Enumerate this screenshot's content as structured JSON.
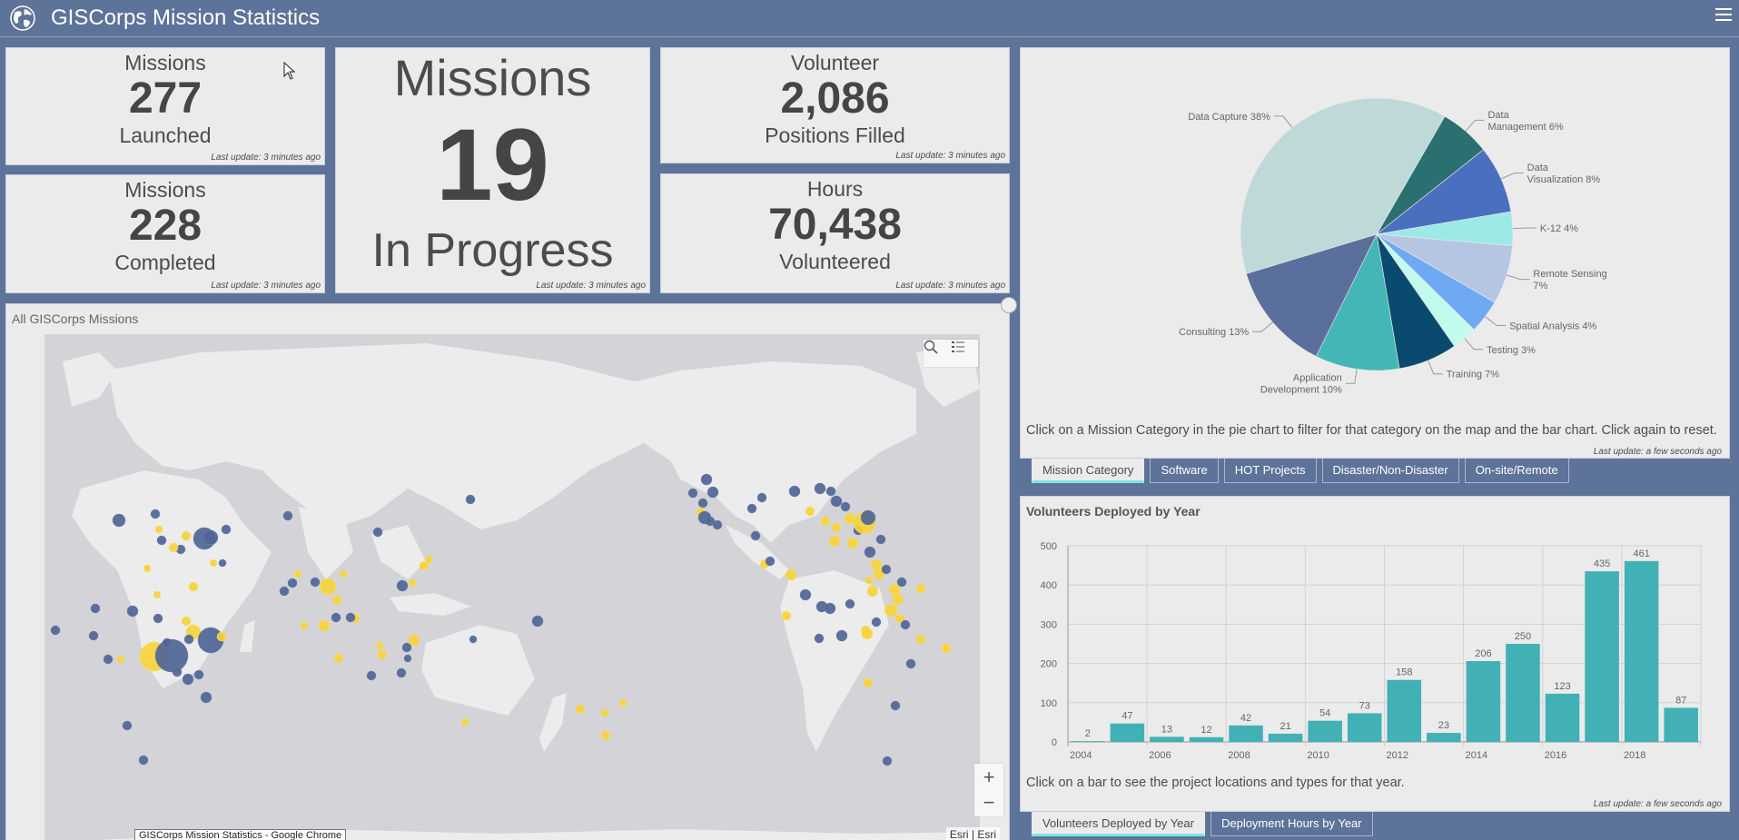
{
  "header": {
    "title": "GISCorps Mission Statistics",
    "logo_icon": "globe-icon",
    "menu_icon": "hamburger-menu-icon"
  },
  "indicators": [
    {
      "top": "Missions",
      "value": "277",
      "bottom": "Launched",
      "updated": "Last update: 3 minutes ago"
    },
    {
      "top": "Missions",
      "value": "228",
      "bottom": "Completed",
      "updated": "Last update: 3 minutes ago"
    },
    {
      "top": "Missions",
      "value": "19",
      "bottom": "In Progress",
      "updated": "Last update: 3 minutes ago"
    },
    {
      "top": "Volunteer",
      "value": "2,086",
      "bottom": "Positions Filled",
      "updated": "Last update: 3 minutes ago"
    },
    {
      "top": "Hours",
      "value": "70,438",
      "bottom": "Volunteered",
      "updated": "Last update: 3 minutes ago"
    }
  ],
  "map": {
    "title": "All GISCorps Missions",
    "search_icon": "search-icon",
    "legend_icon": "legend-list-icon",
    "zoom_in": "+",
    "zoom_out": "−",
    "attribution": "Esri | Esri",
    "colors": {
      "water": "#d3d3d8",
      "land": "#ececec",
      "point_blue": "#4f6596",
      "point_yellow": "#f7d33a"
    }
  },
  "pie_panel": {
    "description": "Click on a Mission Category in the pie chart to filter for that category on the map and the bar chart. Click again to reset.",
    "updated": "Last update: a few seconds ago",
    "tabs": [
      {
        "label": "Mission Category",
        "active": true
      },
      {
        "label": "Software",
        "active": false
      },
      {
        "label": "HOT Projects",
        "active": false
      },
      {
        "label": "Disaster/Non-Disaster",
        "active": false
      },
      {
        "label": "On-site/Remote",
        "active": false
      }
    ]
  },
  "bar_panel": {
    "title": "Volunteers Deployed by Year",
    "description": "Click on a bar to see the project locations and types for that year.",
    "updated": "Last update: a few seconds ago",
    "tabs": [
      {
        "label": "Volunteers Deployed by Year",
        "active": true
      },
      {
        "label": "Deployment Hours by Year",
        "active": false
      }
    ]
  },
  "browser_tooltip": "GISCorps Mission Statistics - Google Chrome",
  "chart_data": [
    {
      "type": "pie",
      "title": "Mission Category",
      "start_angle_deg": 30,
      "slices": [
        {
          "label": "Data Management",
          "value": 6,
          "color": "#2b7070",
          "label_lines": [
            "Data",
            "Management 6%"
          ]
        },
        {
          "label": "Data Visualization",
          "value": 8,
          "color": "#4a6fbf",
          "label_lines": [
            "Data",
            "Visualization 8%"
          ]
        },
        {
          "label": "K-12",
          "value": 4,
          "color": "#9ce9e6",
          "label_lines": [
            "K-12 4%"
          ]
        },
        {
          "label": "Remote Sensing",
          "value": 7,
          "color": "#b6c6e2",
          "label_lines": [
            "Remote Sensing",
            "7%"
          ]
        },
        {
          "label": "Spatial Analysis",
          "value": 4,
          "color": "#6fa9f4",
          "label_lines": [
            "Spatial Analysis 4%"
          ]
        },
        {
          "label": "Testing",
          "value": 3,
          "color": "#c2fbee",
          "label_lines": [
            "Testing 3%"
          ]
        },
        {
          "label": "Training",
          "value": 7,
          "color": "#0a4a6e",
          "label_lines": [
            "Training 7%"
          ]
        },
        {
          "label": "Application Development",
          "value": 10,
          "color": "#45b6b6",
          "label_lines": [
            "Application",
            "Development 10%"
          ]
        },
        {
          "label": "Consulting",
          "value": 13,
          "color": "#5a6f9c",
          "label_lines": [
            "Consulting 13%"
          ]
        },
        {
          "label": "Data Capture",
          "value": 38,
          "color": "#bfd9d9",
          "label_lines": [
            "Data Capture 38%"
          ]
        }
      ]
    },
    {
      "type": "bar",
      "title": "Volunteers Deployed by Year",
      "categories": [
        "2004",
        "2005",
        "2006",
        "2007",
        "2008",
        "2009",
        "2010",
        "2011",
        "2012",
        "2013",
        "2014",
        "2015",
        "2016",
        "2017",
        "2018",
        "2019"
      ],
      "values": [
        2,
        47,
        13,
        12,
        42,
        21,
        54,
        73,
        158,
        23,
        206,
        250,
        123,
        435,
        461,
        87
      ],
      "xlabel": "",
      "ylabel": "",
      "ylim": [
        0,
        500
      ],
      "yticks": [
        0,
        100,
        200,
        300,
        400,
        500
      ],
      "xtick_labels": [
        "2004",
        "2006",
        "2008",
        "2010",
        "2012",
        "2014",
        "2016",
        "2018"
      ],
      "grid": true,
      "bar_color": "#41b1b5",
      "data_labels": true
    }
  ]
}
